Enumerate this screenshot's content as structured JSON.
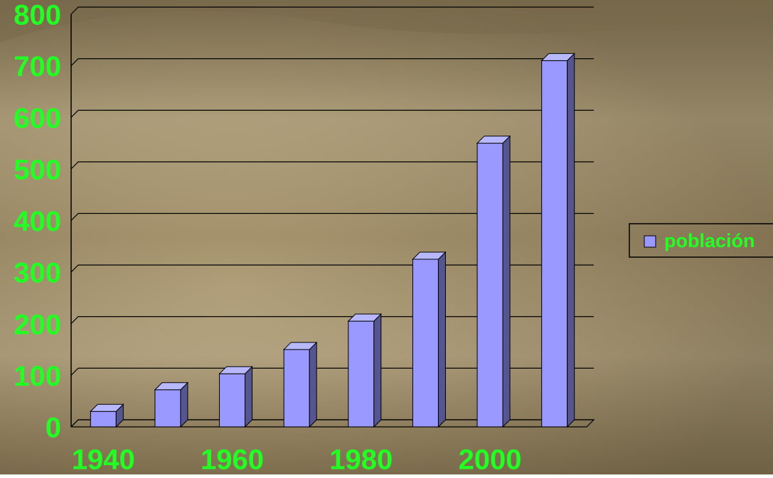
{
  "chart_data": {
    "type": "bar3d",
    "categories": [
      "1940",
      null,
      "1960",
      null,
      "1980",
      null,
      "2000",
      null
    ],
    "series": [
      {
        "name": "población",
        "color": "#9999ff",
        "values": [
          30,
          72,
          103,
          150,
          205,
          325,
          550,
          710
        ]
      }
    ],
    "ylim": [
      0,
      800
    ],
    "yticks": [
      0,
      100,
      200,
      300,
      400,
      500,
      600,
      700,
      800
    ],
    "grid": true,
    "legend": "right"
  }
}
